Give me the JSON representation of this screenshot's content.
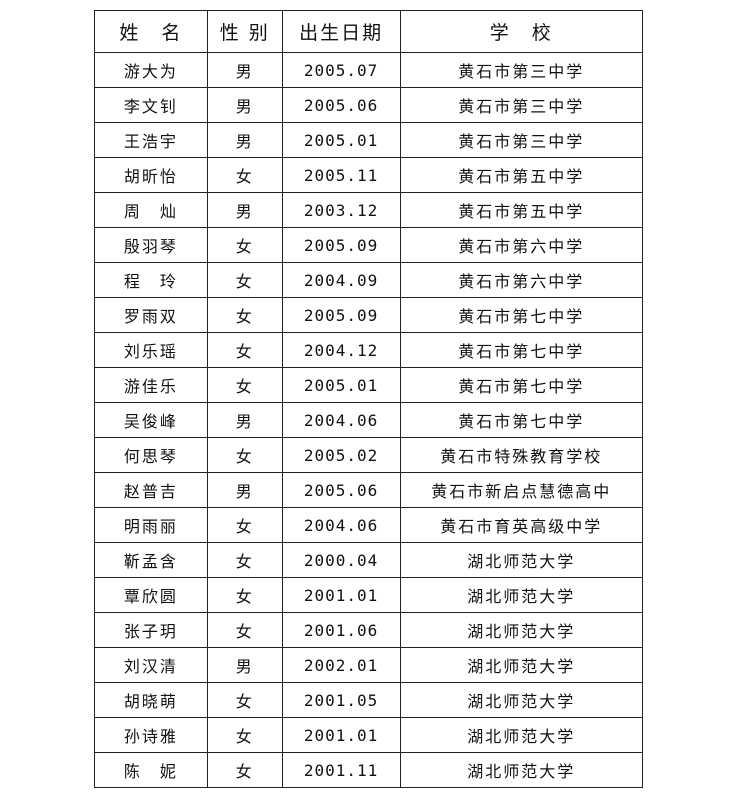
{
  "headers": [
    "姓　名",
    "性 别",
    "出生日期",
    "学　校"
  ],
  "rows": [
    [
      "游大为",
      "男",
      "2005.07",
      "黄石市第三中学"
    ],
    [
      "李文钊",
      "男",
      "2005.06",
      "黄石市第三中学"
    ],
    [
      "王浩宇",
      "男",
      "2005.01",
      "黄石市第三中学"
    ],
    [
      "胡昕怡",
      "女",
      "2005.11",
      "黄石市第五中学"
    ],
    [
      "周　灿",
      "男",
      "2003.12",
      "黄石市第五中学"
    ],
    [
      "殷羽琴",
      "女",
      "2005.09",
      "黄石市第六中学"
    ],
    [
      "程　玲",
      "女",
      "2004.09",
      "黄石市第六中学"
    ],
    [
      "罗雨双",
      "女",
      "2005.09",
      "黄石市第七中学"
    ],
    [
      "刘乐瑶",
      "女",
      "2004.12",
      "黄石市第七中学"
    ],
    [
      "游佳乐",
      "女",
      "2005.01",
      "黄石市第七中学"
    ],
    [
      "吴俊峰",
      "男",
      "2004.06",
      "黄石市第七中学"
    ],
    [
      "何思琴",
      "女",
      "2005.02",
      "黄石市特殊教育学校"
    ],
    [
      "赵普吉",
      "男",
      "2005.06",
      "黄石市新启点慧德高中"
    ],
    [
      "明雨丽",
      "女",
      "2004.06",
      "黄石市育英高级中学"
    ],
    [
      "靳孟含",
      "女",
      "2000.04",
      "湖北师范大学"
    ],
    [
      "覃欣圆",
      "女",
      "2001.01",
      "湖北师范大学"
    ],
    [
      "张子玥",
      "女",
      "2001.06",
      "湖北师范大学"
    ],
    [
      "刘汉清",
      "男",
      "2002.01",
      "湖北师范大学"
    ],
    [
      "胡晓萌",
      "女",
      "2001.05",
      "湖北师范大学"
    ],
    [
      "孙诗雅",
      "女",
      "2001.01",
      "湖北师范大学"
    ],
    [
      "陈　妮",
      "女",
      "2001.11",
      "湖北师范大学"
    ]
  ]
}
